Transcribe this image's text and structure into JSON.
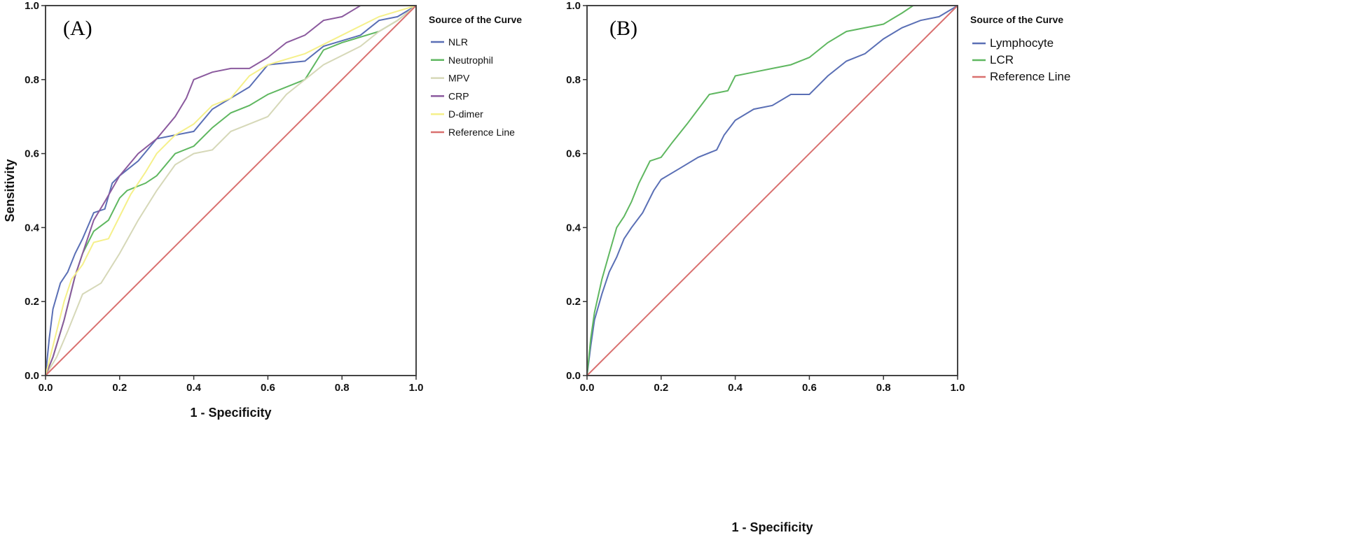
{
  "chart_data": [
    {
      "type": "line",
      "panel_label": "(A)",
      "xlabel": "1 - Specificity",
      "ylabel": "Sensitivity",
      "xlim": [
        0,
        1
      ],
      "ylim": [
        0,
        1
      ],
      "xticks": [
        "0.0",
        "0.2",
        "0.4",
        "0.6",
        "0.8",
        "1.0"
      ],
      "yticks": [
        "0.0",
        "0.2",
        "0.4",
        "0.6",
        "0.8",
        "1.0"
      ],
      "grid": false,
      "legend_title": "Source of the Curve",
      "legend_placement": "right",
      "series": [
        {
          "name": "NLR",
          "color": "#5a6fb5",
          "points": [
            [
              0,
              0
            ],
            [
              0.01,
              0.1
            ],
            [
              0.02,
              0.18
            ],
            [
              0.04,
              0.25
            ],
            [
              0.06,
              0.28
            ],
            [
              0.08,
              0.33
            ],
            [
              0.1,
              0.37
            ],
            [
              0.13,
              0.44
            ],
            [
              0.16,
              0.45
            ],
            [
              0.18,
              0.52
            ],
            [
              0.2,
              0.54
            ],
            [
              0.25,
              0.58
            ],
            [
              0.3,
              0.64
            ],
            [
              0.35,
              0.65
            ],
            [
              0.4,
              0.66
            ],
            [
              0.45,
              0.72
            ],
            [
              0.5,
              0.75
            ],
            [
              0.55,
              0.78
            ],
            [
              0.6,
              0.84
            ],
            [
              0.7,
              0.85
            ],
            [
              0.75,
              0.89
            ],
            [
              0.85,
              0.92
            ],
            [
              0.9,
              0.96
            ],
            [
              0.95,
              0.97
            ],
            [
              1,
              1
            ]
          ]
        },
        {
          "name": "Neutrophil",
          "color": "#5fb760",
          "points": [
            [
              0,
              0
            ],
            [
              0.02,
              0.05
            ],
            [
              0.05,
              0.15
            ],
            [
              0.08,
              0.27
            ],
            [
              0.1,
              0.33
            ],
            [
              0.13,
              0.39
            ],
            [
              0.17,
              0.42
            ],
            [
              0.2,
              0.48
            ],
            [
              0.22,
              0.5
            ],
            [
              0.27,
              0.52
            ],
            [
              0.3,
              0.54
            ],
            [
              0.35,
              0.6
            ],
            [
              0.4,
              0.62
            ],
            [
              0.45,
              0.67
            ],
            [
              0.5,
              0.71
            ],
            [
              0.55,
              0.73
            ],
            [
              0.6,
              0.76
            ],
            [
              0.7,
              0.8
            ],
            [
              0.75,
              0.88
            ],
            [
              0.8,
              0.9
            ],
            [
              0.9,
              0.93
            ],
            [
              0.95,
              0.96
            ],
            [
              1,
              1
            ]
          ]
        },
        {
          "name": "MPV",
          "color": "#d6d8b8",
          "points": [
            [
              0,
              0
            ],
            [
              0.03,
              0.05
            ],
            [
              0.06,
              0.12
            ],
            [
              0.1,
              0.22
            ],
            [
              0.15,
              0.25
            ],
            [
              0.2,
              0.33
            ],
            [
              0.25,
              0.42
            ],
            [
              0.3,
              0.5
            ],
            [
              0.35,
              0.57
            ],
            [
              0.4,
              0.6
            ],
            [
              0.45,
              0.61
            ],
            [
              0.5,
              0.66
            ],
            [
              0.55,
              0.68
            ],
            [
              0.6,
              0.7
            ],
            [
              0.65,
              0.76
            ],
            [
              0.7,
              0.8
            ],
            [
              0.75,
              0.84
            ],
            [
              0.85,
              0.89
            ],
            [
              0.9,
              0.93
            ],
            [
              0.95,
              0.96
            ],
            [
              1,
              1
            ]
          ]
        },
        {
          "name": "CRP",
          "color": "#8b5a9e",
          "points": [
            [
              0,
              0
            ],
            [
              0.02,
              0.05
            ],
            [
              0.05,
              0.15
            ],
            [
              0.08,
              0.27
            ],
            [
              0.1,
              0.33
            ],
            [
              0.13,
              0.42
            ],
            [
              0.16,
              0.47
            ],
            [
              0.2,
              0.54
            ],
            [
              0.25,
              0.6
            ],
            [
              0.3,
              0.64
            ],
            [
              0.35,
              0.7
            ],
            [
              0.38,
              0.75
            ],
            [
              0.4,
              0.8
            ],
            [
              0.45,
              0.82
            ],
            [
              0.5,
              0.83
            ],
            [
              0.55,
              0.83
            ],
            [
              0.6,
              0.86
            ],
            [
              0.65,
              0.9
            ],
            [
              0.7,
              0.92
            ],
            [
              0.75,
              0.96
            ],
            [
              0.8,
              0.97
            ],
            [
              0.85,
              1.0
            ],
            [
              1,
              1
            ]
          ]
        },
        {
          "name": "D-dimer",
          "color": "#f5f08a",
          "points": [
            [
              0,
              0
            ],
            [
              0.02,
              0.08
            ],
            [
              0.05,
              0.2
            ],
            [
              0.07,
              0.26
            ],
            [
              0.1,
              0.3
            ],
            [
              0.13,
              0.36
            ],
            [
              0.17,
              0.37
            ],
            [
              0.2,
              0.43
            ],
            [
              0.23,
              0.49
            ],
            [
              0.27,
              0.55
            ],
            [
              0.3,
              0.6
            ],
            [
              0.35,
              0.65
            ],
            [
              0.4,
              0.68
            ],
            [
              0.45,
              0.73
            ],
            [
              0.5,
              0.75
            ],
            [
              0.55,
              0.81
            ],
            [
              0.6,
              0.84
            ],
            [
              0.7,
              0.87
            ],
            [
              0.8,
              0.92
            ],
            [
              0.9,
              0.97
            ],
            [
              1,
              1
            ]
          ]
        },
        {
          "name": "Reference Line",
          "color": "#d9706f",
          "points": [
            [
              0,
              0
            ],
            [
              1,
              1
            ]
          ]
        }
      ]
    },
    {
      "type": "line",
      "panel_label": "(B)",
      "xlabel": "1 - Specificity",
      "ylabel": "",
      "xlim": [
        0,
        1
      ],
      "ylim": [
        0,
        1
      ],
      "xticks": [
        "0.0",
        "0.2",
        "0.4",
        "0.6",
        "0.8",
        "1.0"
      ],
      "yticks": [
        "0.0",
        "0.2",
        "0.4",
        "0.6",
        "0.8",
        "1.0"
      ],
      "grid": false,
      "legend_title": "Source of the Curve",
      "legend_placement": "right",
      "series": [
        {
          "name": "Lymphocyte",
          "color": "#5a6fb5",
          "points": [
            [
              0,
              0
            ],
            [
              0.01,
              0.08
            ],
            [
              0.02,
              0.15
            ],
            [
              0.04,
              0.22
            ],
            [
              0.06,
              0.28
            ],
            [
              0.08,
              0.32
            ],
            [
              0.1,
              0.37
            ],
            [
              0.12,
              0.4
            ],
            [
              0.15,
              0.44
            ],
            [
              0.18,
              0.5
            ],
            [
              0.2,
              0.53
            ],
            [
              0.25,
              0.56
            ],
            [
              0.3,
              0.59
            ],
            [
              0.35,
              0.61
            ],
            [
              0.37,
              0.65
            ],
            [
              0.4,
              0.69
            ],
            [
              0.45,
              0.72
            ],
            [
              0.5,
              0.73
            ],
            [
              0.55,
              0.76
            ],
            [
              0.6,
              0.76
            ],
            [
              0.65,
              0.81
            ],
            [
              0.7,
              0.85
            ],
            [
              0.75,
              0.87
            ],
            [
              0.8,
              0.91
            ],
            [
              0.85,
              0.94
            ],
            [
              0.9,
              0.96
            ],
            [
              0.95,
              0.97
            ],
            [
              1,
              1
            ]
          ]
        },
        {
          "name": "LCR",
          "color": "#5fb760",
          "points": [
            [
              0,
              0
            ],
            [
              0.01,
              0.1
            ],
            [
              0.02,
              0.17
            ],
            [
              0.04,
              0.26
            ],
            [
              0.06,
              0.33
            ],
            [
              0.08,
              0.4
            ],
            [
              0.1,
              0.43
            ],
            [
              0.12,
              0.47
            ],
            [
              0.14,
              0.52
            ],
            [
              0.17,
              0.58
            ],
            [
              0.2,
              0.59
            ],
            [
              0.23,
              0.63
            ],
            [
              0.27,
              0.68
            ],
            [
              0.3,
              0.72
            ],
            [
              0.33,
              0.76
            ],
            [
              0.38,
              0.77
            ],
            [
              0.4,
              0.81
            ],
            [
              0.45,
              0.82
            ],
            [
              0.5,
              0.83
            ],
            [
              0.55,
              0.84
            ],
            [
              0.6,
              0.86
            ],
            [
              0.65,
              0.9
            ],
            [
              0.7,
              0.93
            ],
            [
              0.8,
              0.95
            ],
            [
              0.85,
              0.98
            ],
            [
              0.88,
              1.0
            ],
            [
              1,
              1
            ]
          ]
        },
        {
          "name": "Reference Line",
          "color": "#d9706f",
          "points": [
            [
              0,
              0
            ],
            [
              1,
              1
            ]
          ]
        }
      ]
    }
  ]
}
